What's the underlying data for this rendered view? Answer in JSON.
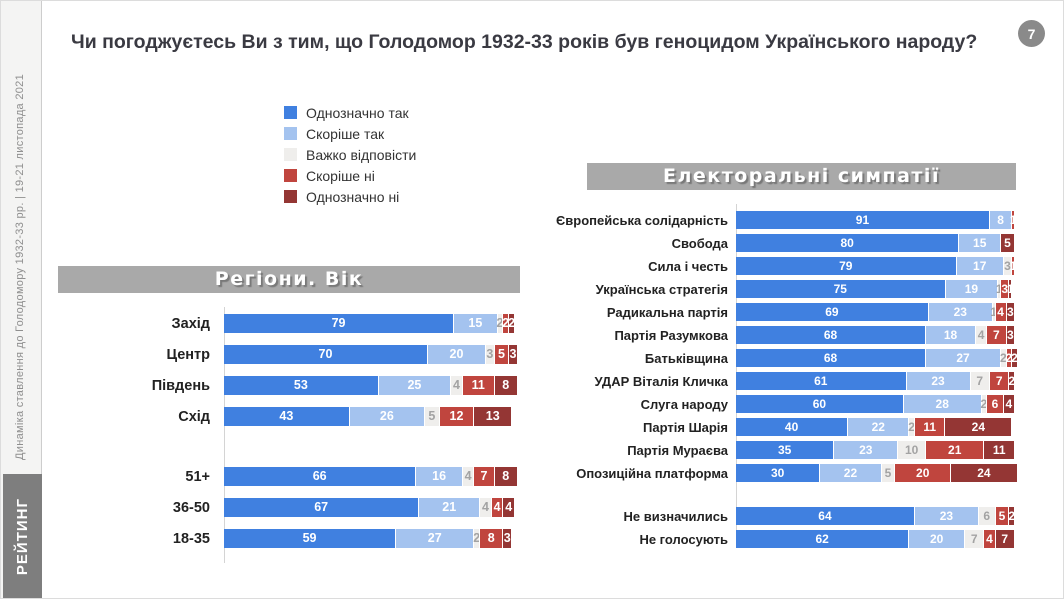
{
  "page": {
    "number": "7"
  },
  "sidebar": {
    "caption": "Динаміка ставлення до Голодомору 1932-33 рр. | 19-21 листопада 2021",
    "logo": "РЕЙТИНГ"
  },
  "title": "Чи погоджуєтесь Ви з тим, що Голодомор 1932-33 років був геноцидом Українського народу?",
  "legend": [
    {
      "label": "Однозначно так",
      "color": "#4080e0"
    },
    {
      "label": "Скоріше так",
      "color": "#a4c3ef"
    },
    {
      "label": "Важко відповісти",
      "color": "#efeeec"
    },
    {
      "label": "Скоріше ні",
      "color": "#c0453e"
    },
    {
      "label": "Однозначно ні",
      "color": "#943634"
    }
  ],
  "chart_data": [
    {
      "type": "bar",
      "stacked": true,
      "orientation": "horizontal",
      "title": "Регіони. Вік",
      "unit": "%",
      "xlim": [
        0,
        100
      ],
      "series_names": [
        "Однозначно так",
        "Скоріше так",
        "Важко відповісти",
        "Скоріше ні",
        "Однозначно ні"
      ],
      "rows": [
        {
          "label": "Захід",
          "values": [
            79,
            15,
            2,
            2,
            2
          ]
        },
        {
          "label": "Центр",
          "values": [
            70,
            20,
            3,
            5,
            3
          ]
        },
        {
          "label": "Південь",
          "values": [
            53,
            25,
            4,
            11,
            8
          ]
        },
        {
          "label": "Схід",
          "values": [
            43,
            26,
            5,
            12,
            13
          ]
        },
        {
          "spacer": true
        },
        {
          "label": "51+",
          "values": [
            66,
            16,
            4,
            7,
            8
          ]
        },
        {
          "label": "36-50",
          "values": [
            67,
            21,
            4,
            4,
            4
          ]
        },
        {
          "label": "18-35",
          "values": [
            59,
            27,
            2,
            8,
            3
          ]
        }
      ]
    },
    {
      "type": "bar",
      "stacked": true,
      "orientation": "horizontal",
      "title": "Електоральні симпатії",
      "unit": "%",
      "xlim": [
        0,
        100
      ],
      "series_names": [
        "Однозначно так",
        "Скоріше так",
        "Важко відповісти",
        "Скоріше ні",
        "Однозначно ні"
      ],
      "rows": [
        {
          "label": "Європейська солідарність",
          "values": [
            91,
            8,
            0,
            1,
            0
          ]
        },
        {
          "label": "Свобода",
          "values": [
            80,
            15,
            0,
            0,
            5
          ]
        },
        {
          "label": "Сила і честь",
          "values": [
            79,
            17,
            3,
            1,
            0
          ]
        },
        {
          "label": "Українська стратегія",
          "values": [
            75,
            19,
            1,
            3,
            1
          ]
        },
        {
          "label": "Радикальна партія",
          "values": [
            69,
            23,
            1,
            4,
            3
          ]
        },
        {
          "label": "Партія Разумкова",
          "values": [
            68,
            18,
            4,
            7,
            3
          ]
        },
        {
          "label": "Батьківщина",
          "values": [
            68,
            27,
            2,
            2,
            2
          ]
        },
        {
          "label": "УДАР Віталія Кличка",
          "values": [
            61,
            23,
            7,
            7,
            2
          ]
        },
        {
          "label": "Слуга народу",
          "values": [
            60,
            28,
            2,
            6,
            4
          ]
        },
        {
          "label": "Партія Шарія",
          "values": [
            40,
            22,
            2,
            11,
            24
          ]
        },
        {
          "label": "Партія Мураєва",
          "values": [
            35,
            23,
            10,
            21,
            11
          ]
        },
        {
          "label": "Опозиційна платформа",
          "values": [
            30,
            22,
            5,
            20,
            24
          ]
        },
        {
          "spacer": true
        },
        {
          "label": "Не визначились",
          "values": [
            64,
            23,
            6,
            5,
            2
          ]
        },
        {
          "label": "Не голосують",
          "values": [
            62,
            20,
            7,
            4,
            7
          ]
        }
      ]
    }
  ]
}
